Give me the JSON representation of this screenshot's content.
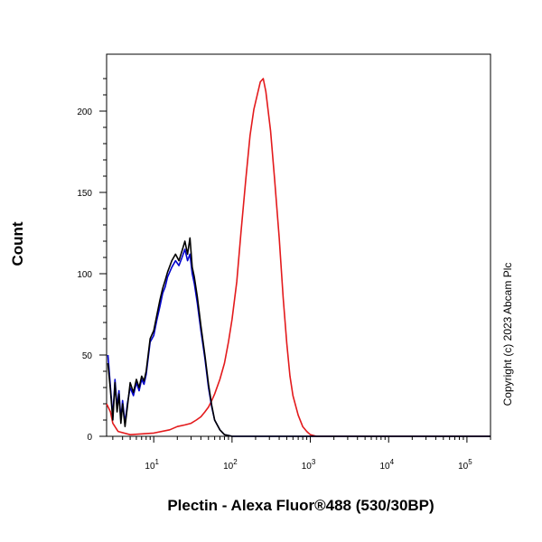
{
  "chart_data": {
    "type": "line",
    "xlabel": "Plectin - Alexa Fluor®488 (530/30BP)",
    "ylabel": "Count",
    "x_scale": "log",
    "xlim": [
      2.5,
      200000
    ],
    "ylim": [
      0,
      235
    ],
    "x_ticks": [
      {
        "value": 10,
        "base": "10",
        "exp": "1"
      },
      {
        "value": 100,
        "base": "10",
        "exp": "2"
      },
      {
        "value": 1000,
        "base": "10",
        "exp": "3"
      },
      {
        "value": 10000,
        "base": "10",
        "exp": "4"
      },
      {
        "value": 100000,
        "base": "10",
        "exp": "5"
      }
    ],
    "y_ticks": [
      0,
      50,
      100,
      150,
      200
    ],
    "series": [
      {
        "color": "#e31a1c",
        "points": [
          [
            2.5,
            20
          ],
          [
            2.8,
            15
          ],
          [
            3.0,
            8
          ],
          [
            3.5,
            3
          ],
          [
            5,
            1
          ],
          [
            10,
            2
          ],
          [
            16,
            4
          ],
          [
            20,
            6
          ],
          [
            25,
            7
          ],
          [
            30,
            8
          ],
          [
            35,
            10
          ],
          [
            40,
            12
          ],
          [
            45,
            15
          ],
          [
            50,
            18
          ],
          [
            55,
            22
          ],
          [
            60,
            26
          ],
          [
            70,
            35
          ],
          [
            80,
            45
          ],
          [
            90,
            58
          ],
          [
            100,
            72
          ],
          [
            115,
            95
          ],
          [
            130,
            125
          ],
          [
            150,
            158
          ],
          [
            170,
            185
          ],
          [
            190,
            201
          ],
          [
            210,
            210
          ],
          [
            230,
            218
          ],
          [
            250,
            220
          ],
          [
            270,
            212
          ],
          [
            290,
            200
          ],
          [
            310,
            188
          ],
          [
            350,
            158
          ],
          [
            400,
            122
          ],
          [
            450,
            85
          ],
          [
            500,
            57
          ],
          [
            550,
            37
          ],
          [
            600,
            25
          ],
          [
            700,
            13
          ],
          [
            800,
            6
          ],
          [
            900,
            3
          ],
          [
            1000,
            1
          ],
          [
            1200,
            0
          ],
          [
            200000,
            0
          ]
        ]
      },
      {
        "color": "#0000cc",
        "points": [
          [
            2.6,
            50
          ],
          [
            2.8,
            30
          ],
          [
            3.0,
            12
          ],
          [
            3.2,
            35
          ],
          [
            3.4,
            18
          ],
          [
            3.6,
            28
          ],
          [
            3.8,
            10
          ],
          [
            4.0,
            22
          ],
          [
            4.3,
            8
          ],
          [
            4.6,
            20
          ],
          [
            5.0,
            30
          ],
          [
            5.5,
            25
          ],
          [
            6.0,
            33
          ],
          [
            6.5,
            28
          ],
          [
            7.0,
            35
          ],
          [
            7.5,
            32
          ],
          [
            8.0,
            38
          ],
          [
            9.0,
            58
          ],
          [
            10,
            62
          ],
          [
            11,
            72
          ],
          [
            12,
            80
          ],
          [
            13,
            88
          ],
          [
            14,
            92
          ],
          [
            15,
            98
          ],
          [
            17,
            104
          ],
          [
            19,
            108
          ],
          [
            21,
            105
          ],
          [
            23,
            110
          ],
          [
            25,
            115
          ],
          [
            27,
            108
          ],
          [
            29,
            112
          ],
          [
            31,
            100
          ],
          [
            33,
            94
          ],
          [
            36,
            82
          ],
          [
            40,
            65
          ],
          [
            45,
            48
          ],
          [
            50,
            30
          ],
          [
            55,
            18
          ],
          [
            60,
            10
          ],
          [
            70,
            4
          ],
          [
            80,
            1
          ],
          [
            100,
            0
          ],
          [
            200000,
            0
          ]
        ]
      },
      {
        "color": "#000000",
        "points": [
          [
            2.6,
            45
          ],
          [
            2.8,
            28
          ],
          [
            3.0,
            10
          ],
          [
            3.2,
            33
          ],
          [
            3.4,
            15
          ],
          [
            3.6,
            26
          ],
          [
            3.8,
            8
          ],
          [
            4.0,
            20
          ],
          [
            4.3,
            6
          ],
          [
            4.6,
            18
          ],
          [
            5.0,
            33
          ],
          [
            5.5,
            27
          ],
          [
            6.0,
            35
          ],
          [
            6.5,
            30
          ],
          [
            7.0,
            37
          ],
          [
            7.5,
            34
          ],
          [
            8.0,
            40
          ],
          [
            9.0,
            60
          ],
          [
            10,
            65
          ],
          [
            11,
            75
          ],
          [
            12,
            84
          ],
          [
            13,
            91
          ],
          [
            14,
            96
          ],
          [
            15,
            101
          ],
          [
            17,
            108
          ],
          [
            19,
            112
          ],
          [
            21,
            108
          ],
          [
            23,
            114
          ],
          [
            25,
            120
          ],
          [
            27,
            112
          ],
          [
            29,
            122
          ],
          [
            31,
            104
          ],
          [
            33,
            98
          ],
          [
            36,
            86
          ],
          [
            40,
            68
          ],
          [
            45,
            50
          ],
          [
            50,
            32
          ],
          [
            55,
            19
          ],
          [
            60,
            10
          ],
          [
            70,
            4
          ],
          [
            80,
            1
          ],
          [
            100,
            0
          ],
          [
            200000,
            0
          ]
        ]
      }
    ]
  },
  "copyright": "Copyright (c) 2023 Abcam Plc"
}
